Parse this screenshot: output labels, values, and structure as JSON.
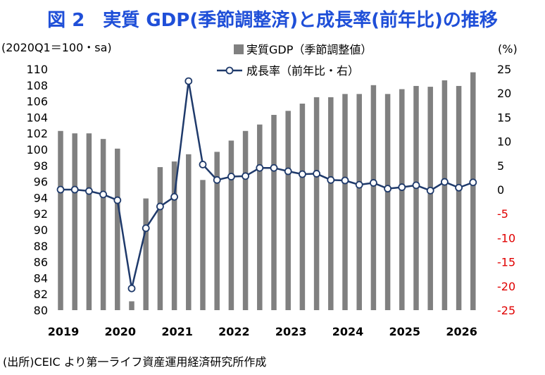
{
  "title": "図 2　実質 GDP(季節調整済)と成長率(前年比)の推移",
  "source": "(出所)CEIC より第一ライフ資産運用経済研究所作成",
  "colors": {
    "title": "#1f4fd8",
    "bar": "#808080",
    "line": "#1f3a6b",
    "negative": "#e00000"
  },
  "chart_data": {
    "type": "bar+line",
    "left_axis_label": "(2020Q1＝100・sa)",
    "right_axis_label": "(%)",
    "left_ylim": [
      80,
      110
    ],
    "left_ticks": [
      "110",
      "108",
      "106",
      "104",
      "102",
      "100",
      "98",
      "96",
      "94",
      "92",
      "90",
      "88",
      "86",
      "84",
      "82",
      "80"
    ],
    "right_ylim": [
      -25,
      25
    ],
    "right_ticks": [
      "25",
      "20",
      "15",
      "10",
      "5",
      "0",
      "-5",
      "-10",
      "-15",
      "-20",
      "-25"
    ],
    "year_labels": [
      "2019",
      "2020",
      "2021",
      "2022",
      "2023",
      "2024",
      "2025",
      "2026"
    ],
    "grid": false,
    "legend": [
      {
        "name": "実質GDP（季節調整値）",
        "kind": "bar"
      },
      {
        "name": "成長率（前年比・右）",
        "kind": "line"
      }
    ],
    "series": [
      {
        "name": "実質GDP（季節調整値）",
        "axis": "left",
        "values": [
          102.3,
          102.0,
          102.0,
          101.3,
          100.1,
          81.1,
          93.9,
          97.8,
          98.5,
          99.4,
          96.2,
          99.7,
          101.1,
          102.3,
          103.1,
          104.3,
          104.8,
          105.7,
          106.5,
          106.5,
          106.9,
          106.9,
          108.0,
          106.9,
          107.5,
          107.9,
          107.8,
          108.6,
          107.9,
          109.6
        ]
      },
      {
        "name": "成長率（前年比・右）",
        "axis": "right",
        "values": [
          0.0,
          0.0,
          -0.3,
          -1.0,
          -2.2,
          -20.5,
          -8.0,
          -3.5,
          -1.5,
          22.5,
          5.2,
          2.0,
          2.7,
          2.8,
          4.5,
          4.5,
          3.8,
          3.2,
          3.3,
          2.0,
          1.9,
          1.0,
          1.4,
          0.2,
          0.5,
          0.9,
          -0.2,
          1.6,
          0.4,
          1.5
        ]
      }
    ]
  }
}
